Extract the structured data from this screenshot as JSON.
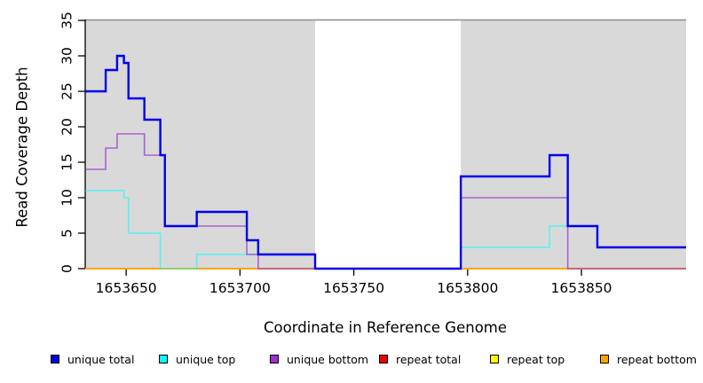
{
  "chart_data": {
    "type": "line",
    "subtype": "step-coverage",
    "title": "",
    "xlabel": "Coordinate in Reference Genome",
    "ylabel": "Read Coverage Depth",
    "xlim": [
      1653632,
      1653896
    ],
    "ylim": [
      0,
      35
    ],
    "grid": false,
    "legend_position": "bottom",
    "background_color": "#ffffff",
    "band_color": "#d9d9d9",
    "shaded_regions": [
      [
        1653632,
        1653733
      ],
      [
        1653797,
        1653896
      ]
    ],
    "x_ticks": [
      {
        "value": 1653650,
        "label": "1653650"
      },
      {
        "value": 1653700,
        "label": "1653700"
      },
      {
        "value": 1653750,
        "label": "1653750"
      },
      {
        "value": 1653800,
        "label": "1653800"
      },
      {
        "value": 1653850,
        "label": "1653850"
      }
    ],
    "y_ticks": [
      {
        "value": 0,
        "label": "0"
      },
      {
        "value": 5,
        "label": "5"
      },
      {
        "value": 10,
        "label": "10"
      },
      {
        "value": 15,
        "label": "15"
      },
      {
        "value": 20,
        "label": "20"
      },
      {
        "value": 25,
        "label": "25"
      },
      {
        "value": 30,
        "label": "30"
      },
      {
        "value": 35,
        "label": "35"
      }
    ],
    "series": [
      {
        "name": "unique total",
        "color": "#0000EE",
        "steps": [
          [
            1653632,
            25
          ],
          [
            1653641,
            28
          ],
          [
            1653646,
            30
          ],
          [
            1653649,
            29
          ],
          [
            1653651,
            24
          ],
          [
            1653658,
            21
          ],
          [
            1653665,
            16
          ],
          [
            1653667,
            6
          ],
          [
            1653681,
            8
          ],
          [
            1653703,
            4
          ],
          [
            1653708,
            2
          ],
          [
            1653733,
            0
          ],
          [
            1653797,
            13
          ],
          [
            1653836,
            16
          ],
          [
            1653844,
            6
          ],
          [
            1653857,
            3
          ]
        ],
        "xend": 1653896
      },
      {
        "name": "unique top",
        "color": "#00FFFF",
        "steps": [
          [
            1653632,
            11
          ],
          [
            1653649,
            10
          ],
          [
            1653651,
            5
          ],
          [
            1653665,
            0
          ],
          [
            1653681,
            2
          ],
          [
            1653733,
            0
          ],
          [
            1653797,
            3
          ],
          [
            1653836,
            6
          ],
          [
            1653857,
            3
          ]
        ],
        "xend": 1653896
      },
      {
        "name": "unique bottom",
        "color": "#9932CC",
        "steps": [
          [
            1653632,
            14
          ],
          [
            1653641,
            17
          ],
          [
            1653646,
            19
          ],
          [
            1653658,
            16
          ],
          [
            1653667,
            6
          ],
          [
            1653703,
            2
          ],
          [
            1653708,
            0
          ],
          [
            1653797,
            10
          ],
          [
            1653844,
            0
          ]
        ],
        "xend": 1653896
      },
      {
        "name": "repeat total",
        "color": "#EE0000",
        "steps": [
          [
            1653632,
            0
          ]
        ],
        "xend": 1653896
      },
      {
        "name": "repeat top",
        "color": "#FFFF00",
        "steps": [
          [
            1653632,
            0
          ]
        ],
        "xend": 1653896
      },
      {
        "name": "repeat bottom",
        "color": "#FFA500",
        "steps": [
          [
            1653632,
            0
          ]
        ],
        "xend": 1653896
      }
    ],
    "legend": [
      {
        "label": "unique total",
        "color": "#0000EE"
      },
      {
        "label": "unique top",
        "color": "#00FFFF"
      },
      {
        "label": "unique bottom",
        "color": "#9932CC"
      },
      {
        "label": "repeat total",
        "color": "#EE0000"
      },
      {
        "label": "repeat top",
        "color": "#FFFF00"
      },
      {
        "label": "repeat bottom",
        "color": "#FFA500"
      }
    ]
  }
}
